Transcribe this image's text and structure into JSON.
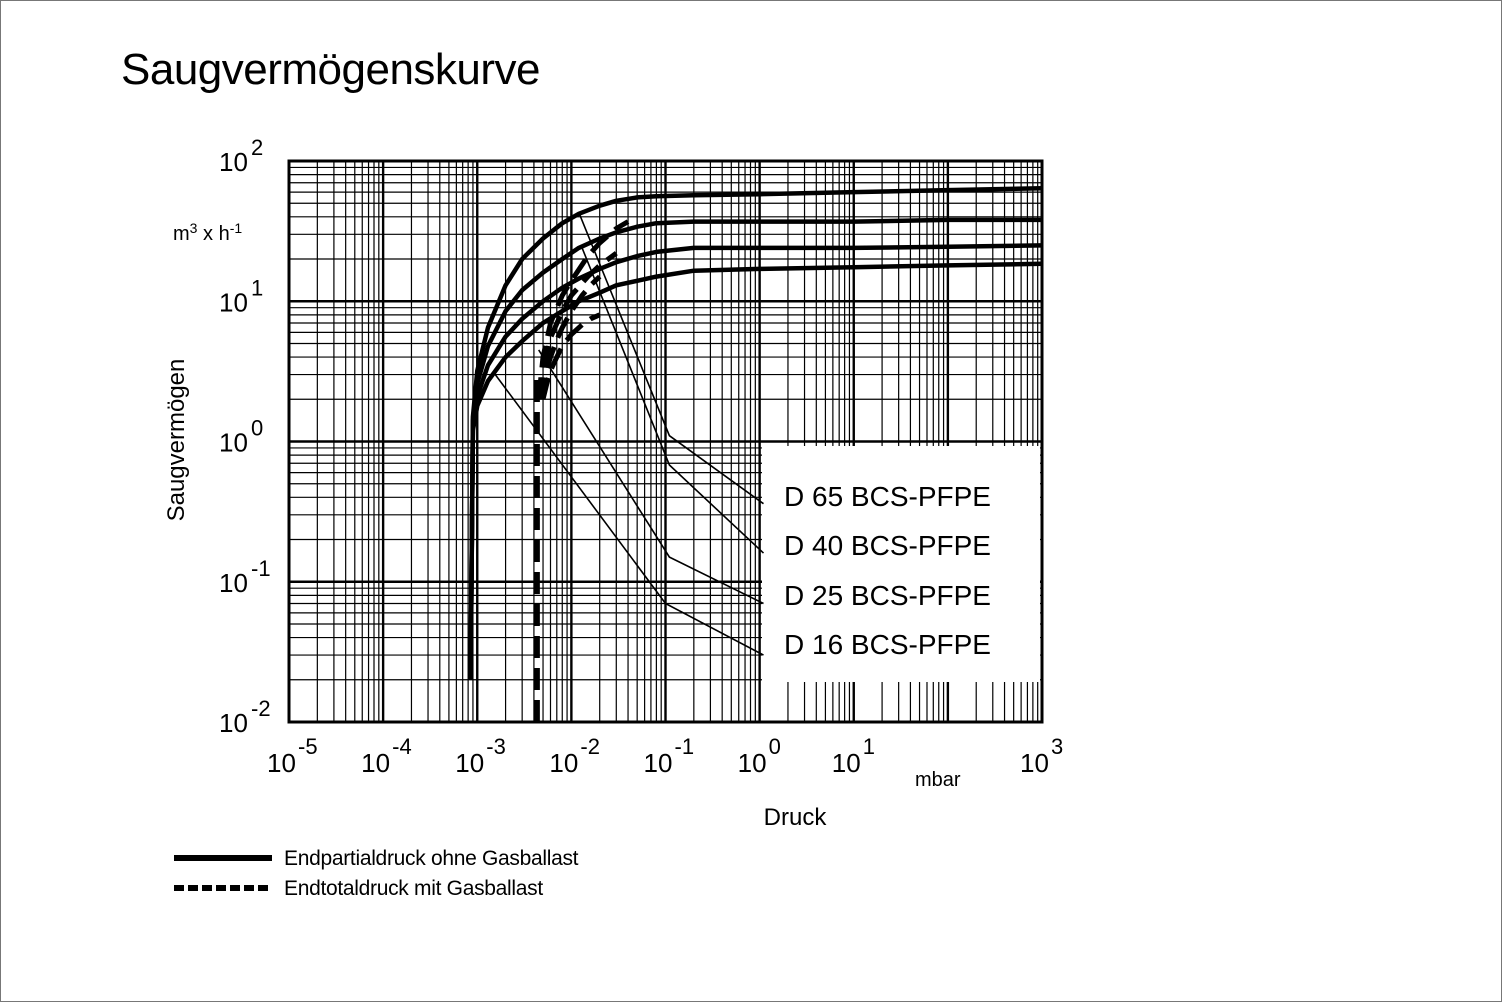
{
  "title": "Saugvermögenskurve",
  "chart_data": {
    "type": "line",
    "title": "Saugvermögenskurve",
    "xlabel": "Druck",
    "x_unit": "mbar",
    "ylabel": "Saugvermögen",
    "y_unit": "m3 x h-1",
    "x_scale": "log",
    "y_scale": "log",
    "xlim": [
      1e-05,
      1000
    ],
    "ylim": [
      0.01,
      100
    ],
    "x_ticks": [
      {
        "base": "10",
        "exp": "-5",
        "value": 1e-05
      },
      {
        "base": "10",
        "exp": "-4",
        "value": 0.0001
      },
      {
        "base": "10",
        "exp": "-3",
        "value": 0.001
      },
      {
        "base": "10",
        "exp": "-2",
        "value": 0.01
      },
      {
        "base": "10",
        "exp": "-1",
        "value": 0.1
      },
      {
        "base": "10",
        "exp": "0",
        "value": 1
      },
      {
        "base": "10",
        "exp": "1",
        "value": 10
      },
      {
        "base": "10",
        "exp": "3",
        "value": 1000
      }
    ],
    "y_ticks": [
      {
        "base": "10",
        "exp": "2",
        "value": 100
      },
      {
        "base": "10",
        "exp": "1",
        "value": 10
      },
      {
        "base": "10",
        "exp": "0",
        "value": 1
      },
      {
        "base": "10",
        "exp": "-1",
        "value": 0.1
      },
      {
        "base": "10",
        "exp": "-2",
        "value": 0.01
      }
    ],
    "grid": true,
    "series": [
      {
        "name": "D 65 BCS-PFPE",
        "solid": {
          "x": [
            0.00085,
            0.0009,
            0.001,
            0.0013,
            0.002,
            0.003,
            0.005,
            0.008,
            0.012,
            0.02,
            0.03,
            0.05,
            0.08,
            0.2,
            1,
            10,
            100,
            1000
          ],
          "y": [
            0.02,
            1.5,
            3.2,
            6.5,
            13,
            20,
            28,
            36,
            42,
            48,
            52,
            55,
            56,
            57,
            58,
            60,
            62,
            64
          ]
        },
        "dashed": {
          "x": [
            0.0045,
            0.005,
            0.006,
            0.008,
            0.01,
            0.015,
            0.02,
            0.03,
            0.04
          ],
          "y": [
            2,
            4,
            7,
            11,
            14,
            21,
            26,
            33,
            37
          ]
        }
      },
      {
        "name": "D 40 BCS-PFPE",
        "solid": {
          "x": [
            0.00085,
            0.0009,
            0.001,
            0.0013,
            0.002,
            0.003,
            0.005,
            0.008,
            0.012,
            0.02,
            0.03,
            0.05,
            0.08,
            0.2,
            1,
            10,
            100,
            1000
          ],
          "y": [
            0.02,
            1.4,
            2.6,
            4.8,
            8.5,
            12,
            16,
            20,
            24,
            28,
            31,
            34,
            36,
            37,
            37,
            37,
            38,
            38
          ]
        },
        "dashed": {
          "x": [
            0.0047,
            0.0052,
            0.006,
            0.008,
            0.01,
            0.015,
            0.02,
            0.03
          ],
          "y": [
            2,
            3.5,
            5.5,
            8.5,
            11,
            15,
            18,
            22
          ]
        }
      },
      {
        "name": "D 25 BCS-PFPE",
        "solid": {
          "x": [
            0.00085,
            0.0009,
            0.001,
            0.0013,
            0.002,
            0.003,
            0.005,
            0.008,
            0.012,
            0.02,
            0.03,
            0.05,
            0.08,
            0.2,
            1,
            10,
            100,
            1000
          ],
          "y": [
            0.02,
            1.3,
            2.1,
            3.5,
            5.6,
            7.5,
            10,
            12.5,
            14.5,
            17,
            19,
            21,
            22.5,
            24,
            24,
            24,
            24.5,
            25
          ]
        },
        "dashed": {
          "x": [
            0.0048,
            0.0053,
            0.006,
            0.007,
            0.008,
            0.01,
            0.013,
            0.016,
            0.02
          ],
          "y": [
            2,
            3,
            4,
            5.3,
            6.5,
            8.5,
            11,
            13,
            15
          ]
        }
      },
      {
        "name": "D 16 BCS-PFPE",
        "solid": {
          "x": [
            0.00085,
            0.0009,
            0.001,
            0.0013,
            0.002,
            0.003,
            0.005,
            0.008,
            0.012,
            0.02,
            0.03,
            0.05,
            0.08,
            0.2,
            1,
            10,
            100,
            1000
          ],
          "y": [
            0.02,
            1.2,
            1.8,
            2.7,
            4,
            5.2,
            7,
            8.5,
            10,
            11.5,
            13,
            14,
            15,
            16.5,
            17,
            17.5,
            18,
            18.5
          ]
        },
        "dashed": {
          "x": [
            0.005,
            0.0055,
            0.006,
            0.007,
            0.008,
            0.01,
            0.013,
            0.016,
            0.02
          ],
          "y": [
            2,
            2.6,
            3.2,
            4,
            4.8,
            5.8,
            6.8,
            7.5,
            8
          ]
        }
      }
    ],
    "endtotal_line": {
      "x": 0.0043,
      "y_range": [
        0.01,
        3
      ]
    },
    "legend": {
      "position": "bottom-left",
      "entries": [
        {
          "style": "solid",
          "text": "Endpartialdruck ohne Gasballast"
        },
        {
          "style": "dashed",
          "text": "Endtotaldruck mit Gasballast"
        }
      ]
    },
    "annotations": [
      {
        "text": "D 65 BCS-PFPE",
        "points": [
          [
            0.012,
            43
          ],
          [
            0.11,
            1.1
          ],
          [
            1.1,
            0.36
          ]
        ]
      },
      {
        "text": "D 40 BCS-PFPE",
        "points": [
          [
            0.013,
            24
          ],
          [
            0.11,
            0.68
          ],
          [
            1.1,
            0.16
          ]
        ]
      },
      {
        "text": "D 25 BCS-PFPE",
        "points": [
          [
            0.0045,
            4.5
          ],
          [
            0.11,
            0.15
          ],
          [
            1.1,
            0.07
          ]
        ]
      },
      {
        "text": "D 16 BCS-PFPE",
        "points": [
          [
            0.0015,
            3.1
          ],
          [
            0.1,
            0.07
          ],
          [
            1.1,
            0.03
          ]
        ]
      }
    ]
  }
}
